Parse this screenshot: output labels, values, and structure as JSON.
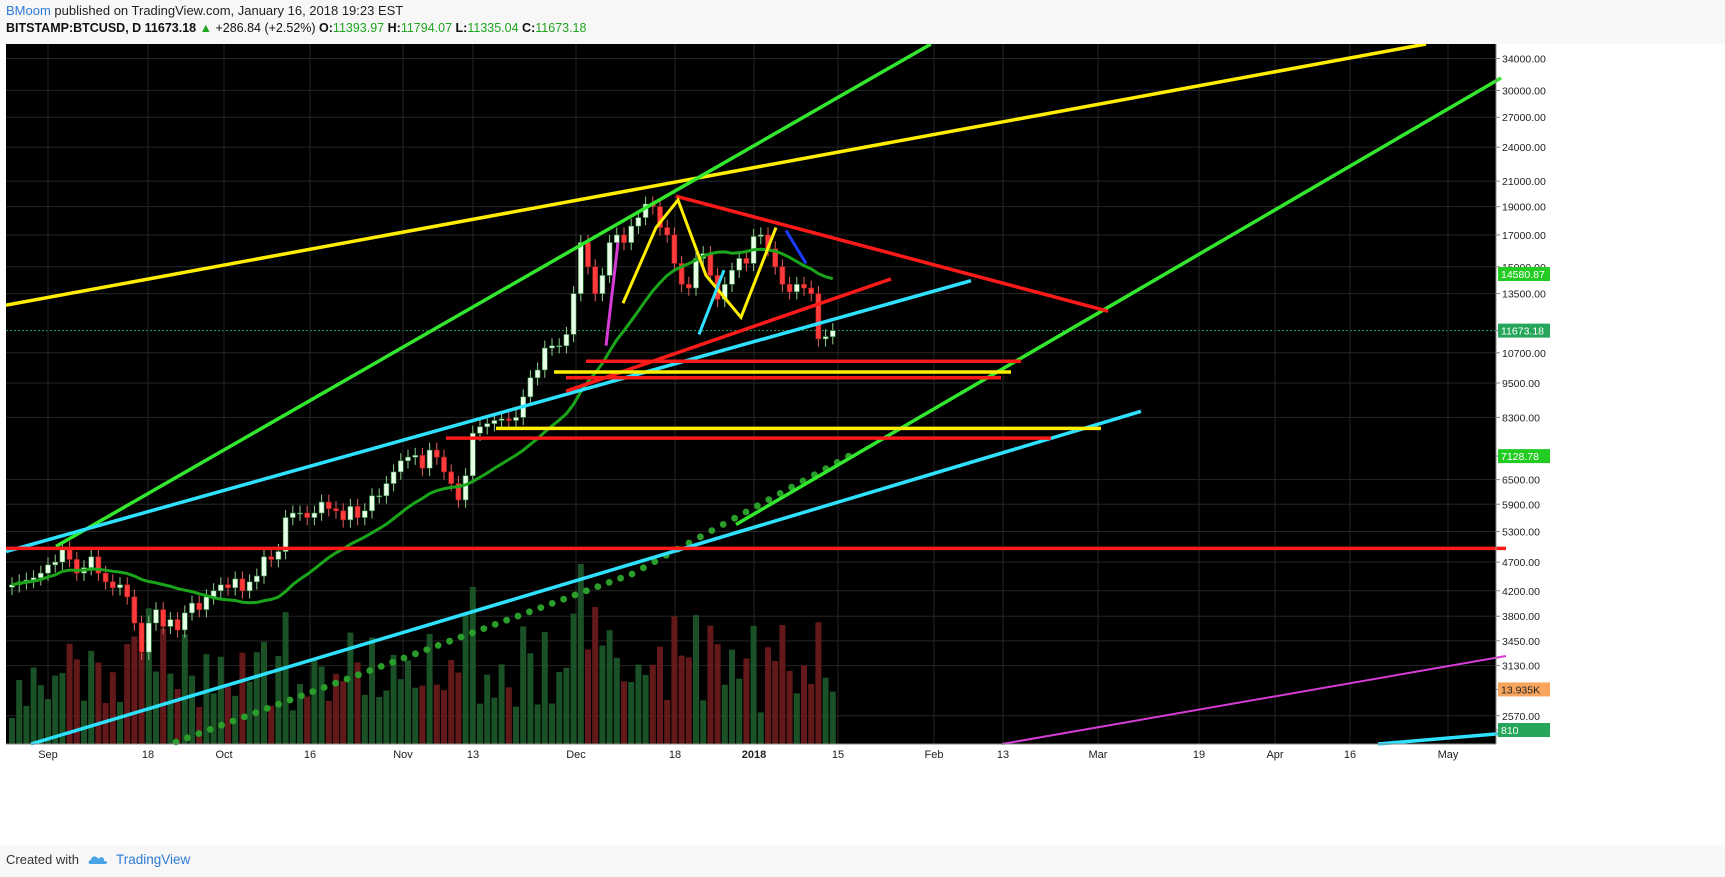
{
  "header": {
    "author": "BMoom",
    "published": "published on TradingView.com, January 16, 2018 19:23 EST",
    "symbol": "BITSTAMP:BTCUSD, D",
    "last": "11673.18",
    "arrow": "▲",
    "change": "+286.84 (+2.52%)",
    "o_label": "O:",
    "o_value": "11393.97",
    "h_label": "H:",
    "h_value": "11794.07",
    "l_label": "L:",
    "l_value": "11335.04",
    "c_label": "C:",
    "c_value": "11673.18"
  },
  "footer": {
    "created": "Created with",
    "brand": "TradingView"
  },
  "colors": {
    "background": "#000000",
    "up": "#2e8b3c",
    "down": "#b31e1e",
    "green_line": "#33e62e",
    "yellow_line": "#ffee00",
    "cyan_line": "#2ee1ff",
    "red_line": "#ff1a1a",
    "magenta_line": "#d63cd6",
    "ma_green": "#1aa51a"
  },
  "chart_data": {
    "type": "candlestick",
    "title": "BITSTAMP:BTCUSD, D",
    "x_labels": [
      "Sep",
      "18",
      "Oct",
      "16",
      "Nov",
      "13",
      "Dec",
      "18",
      "2018",
      "15",
      "Feb",
      "13",
      "Mar",
      "19",
      "Apr",
      "16",
      "May"
    ],
    "y_ticks": [
      "34000.00",
      "30000.00",
      "27000.00",
      "24000.00",
      "21000.00",
      "19000.00",
      "17000.00",
      "15000.00",
      "13500.00",
      "11673.18",
      "10700.00",
      "9500.00",
      "8300.00",
      "7128.78",
      "6500.00",
      "5900.00",
      "5300.00",
      "4700.00",
      "4200.00",
      "3800.00",
      "3450.00",
      "3130.00",
      "13.935K",
      "2570.00",
      "810"
    ],
    "y_scale": "log",
    "ylim": [
      2300,
      36000
    ],
    "price_markers": [
      {
        "label": "14580.87",
        "value": 14580.87,
        "color": "#22cc22"
      },
      {
        "label": "11673.18",
        "value": 11673.18,
        "color": "#26a65b"
      },
      {
        "label": "7128.78",
        "value": 7128.78,
        "color": "#22cc22"
      },
      {
        "label": "13.935K",
        "value": 2850,
        "color": "#f7a45c"
      },
      {
        "label": "810",
        "value": 2430,
        "color": "#26a65b"
      }
    ],
    "closes": [
      4300,
      4350,
      4380,
      4420,
      4500,
      4650,
      4700,
      4950,
      4750,
      4500,
      4600,
      4800,
      4500,
      4350,
      4250,
      4300,
      4100,
      3700,
      3300,
      3700,
      3900,
      3650,
      3750,
      3600,
      3850,
      4000,
      3900,
      4100,
      4200,
      4300,
      4250,
      4400,
      4200,
      4350,
      4450,
      4800,
      4750,
      4900,
      5600,
      5700,
      5700,
      5600,
      5700,
      5950,
      5800,
      5750,
      5550,
      5850,
      5600,
      5750,
      6100,
      6100,
      6400,
      6700,
      7000,
      7100,
      7150,
      6800,
      7300,
      7100,
      6700,
      6400,
      6000,
      6600,
      7800,
      8000,
      8100,
      8200,
      8250,
      8200,
      8300,
      9000,
      9700,
      10000,
      10900,
      11000,
      11000,
      11500,
      13500,
      16500,
      15000,
      13500,
      14500,
      16500,
      17000,
      16500,
      17600,
      18200,
      19200,
      19000,
      17500,
      17000,
      15200,
      14000,
      13800,
      15500,
      15800,
      14500,
      13200,
      14000,
      14800,
      15500,
      15200,
      16900,
      17000,
      16100,
      15000,
      14000,
      13600,
      14000,
      13800,
      13500,
      11300,
      11400,
      11673
    ]
  }
}
